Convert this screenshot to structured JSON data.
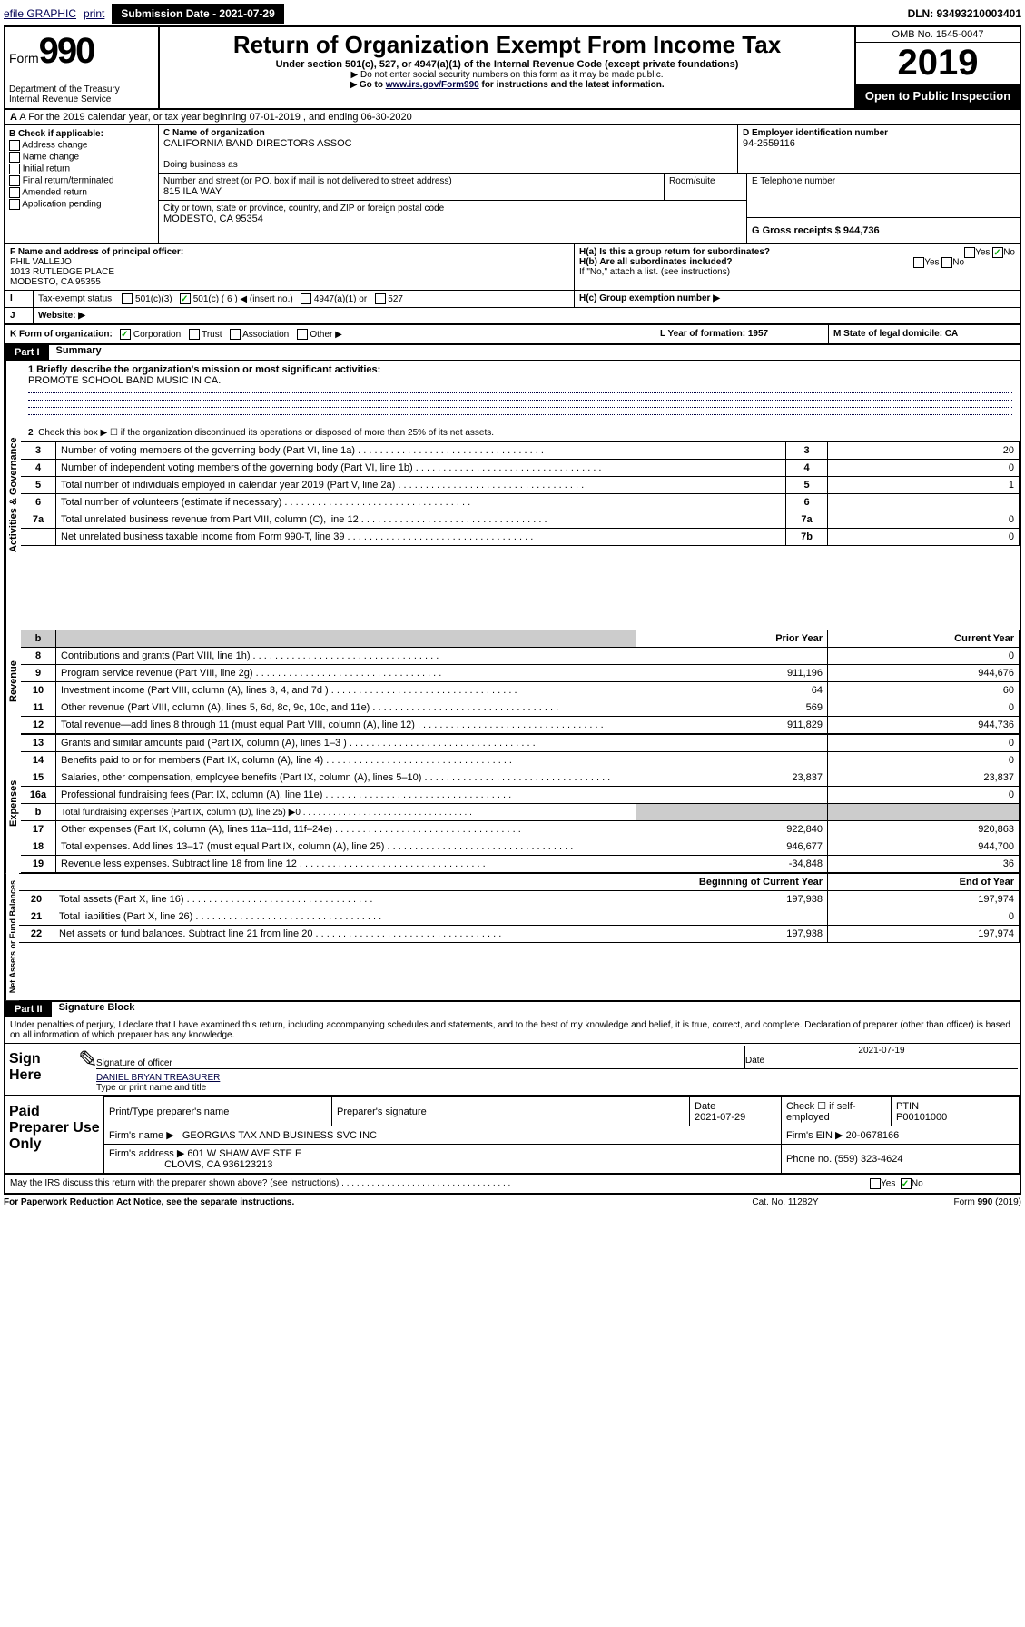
{
  "topbar": {
    "efile": "efile GRAPHIC",
    "print": "print",
    "sub_date_label": "Submission Date - 2021-07-29",
    "dln": "DLN: 93493210003401"
  },
  "header": {
    "form_prefix": "Form",
    "form_num": "990",
    "dept": "Department of the Treasury",
    "irs": "Internal Revenue Service",
    "title": "Return of Organization Exempt From Income Tax",
    "subtitle": "Under section 501(c), 527, or 4947(a)(1) of the Internal Revenue Code (except private foundations)",
    "note1": "▶ Do not enter social security numbers on this form as it may be made public.",
    "note2_pre": "▶ Go to ",
    "note2_link": "www.irs.gov/Form990",
    "note2_post": " for instructions and the latest information.",
    "omb": "OMB No. 1545-0047",
    "year": "2019",
    "open_public": "Open to Public Inspection"
  },
  "section_a": "A For the 2019 calendar year, or tax year beginning 07-01-2019   , and ending 06-30-2020",
  "section_b": {
    "label": "B Check if applicable:",
    "items": [
      "Address change",
      "Name change",
      "Initial return",
      "Final return/terminated",
      "Amended return",
      "Application pending"
    ]
  },
  "section_c": {
    "label": "C Name of organization",
    "name": "CALIFORNIA BAND DIRECTORS ASSOC",
    "dba_label": "Doing business as",
    "addr_label": "Number and street (or P.O. box if mail is not delivered to street address)",
    "room_label": "Room/suite",
    "addr": "815 ILA WAY",
    "city_label": "City or town, state or province, country, and ZIP or foreign postal code",
    "city": "MODESTO, CA  95354"
  },
  "section_d": {
    "label": "D Employer identification number",
    "value": "94-2559116"
  },
  "section_e": {
    "label": "E Telephone number"
  },
  "section_g": {
    "label": "G Gross receipts $ 944,736"
  },
  "section_f": {
    "label": "F Name and address of principal officer:",
    "name": "PHIL VALLEJO",
    "addr": "1013 RUTLEDGE PLACE",
    "city": "MODESTO, CA  95355"
  },
  "section_h": {
    "a": "H(a)  Is this a group return for subordinates?",
    "b": "H(b)  Are all subordinates included?",
    "b_note": "If \"No,\" attach a list. (see instructions)",
    "c": "H(c)  Group exemption number ▶",
    "yes": "Yes",
    "no": "No"
  },
  "section_i": {
    "label": "I",
    "text": "Tax-exempt status:",
    "opts": [
      "501(c)(3)",
      "501(c) ( 6 ) ◀ (insert no.)",
      "4947(a)(1) or",
      "527"
    ]
  },
  "section_j": {
    "label": "J",
    "text": "Website: ▶"
  },
  "section_k": {
    "label": "K Form of organization:",
    "opts": [
      "Corporation",
      "Trust",
      "Association",
      "Other ▶"
    ]
  },
  "section_l": {
    "label": "L Year of formation: 1957"
  },
  "section_m": {
    "label": "M State of legal domicile: CA"
  },
  "part1": {
    "label": "Part I",
    "title": "Summary",
    "vert_act": "Activities & Governance",
    "vert_rev": "Revenue",
    "vert_exp": "Expenses",
    "vert_net": "Net Assets or Fund Balances",
    "q1_label": "1 Briefly describe the organization's mission or most significant activities:",
    "q1_value": "PROMOTE SCHOOL BAND MUSIC IN CA.",
    "q2": "Check this box ▶ ☐  if the organization discontinued its operations or disposed of more than 25% of its net assets.",
    "lines_gov": [
      {
        "n": "3",
        "t": "Number of voting members of the governing body (Part VI, line 1a)",
        "box": "3",
        "v": "20"
      },
      {
        "n": "4",
        "t": "Number of independent voting members of the governing body (Part VI, line 1b)",
        "box": "4",
        "v": "0"
      },
      {
        "n": "5",
        "t": "Total number of individuals employed in calendar year 2019 (Part V, line 2a)",
        "box": "5",
        "v": "1"
      },
      {
        "n": "6",
        "t": "Total number of volunteers (estimate if necessary)",
        "box": "6",
        "v": ""
      },
      {
        "n": "7a",
        "t": "Total unrelated business revenue from Part VIII, column (C), line 12",
        "box": "7a",
        "v": "0"
      },
      {
        "n": "",
        "t": "Net unrelated business taxable income from Form 990-T, line 39",
        "box": "7b",
        "v": "0"
      }
    ],
    "col_prior": "Prior Year",
    "col_current": "Current Year",
    "lines_rev": [
      {
        "n": "8",
        "t": "Contributions and grants (Part VIII, line 1h)",
        "p": "",
        "c": "0"
      },
      {
        "n": "9",
        "t": "Program service revenue (Part VIII, line 2g)",
        "p": "911,196",
        "c": "944,676"
      },
      {
        "n": "10",
        "t": "Investment income (Part VIII, column (A), lines 3, 4, and 7d )",
        "p": "64",
        "c": "60"
      },
      {
        "n": "11",
        "t": "Other revenue (Part VIII, column (A), lines 5, 6d, 8c, 9c, 10c, and 11e)",
        "p": "569",
        "c": "0"
      },
      {
        "n": "12",
        "t": "Total revenue—add lines 8 through 11 (must equal Part VIII, column (A), line 12)",
        "p": "911,829",
        "c": "944,736"
      }
    ],
    "lines_exp": [
      {
        "n": "13",
        "t": "Grants and similar amounts paid (Part IX, column (A), lines 1–3 )",
        "p": "",
        "c": "0"
      },
      {
        "n": "14",
        "t": "Benefits paid to or for members (Part IX, column (A), line 4)",
        "p": "",
        "c": "0"
      },
      {
        "n": "15",
        "t": "Salaries, other compensation, employee benefits (Part IX, column (A), lines 5–10)",
        "p": "23,837",
        "c": "23,837"
      },
      {
        "n": "16a",
        "t": "Professional fundraising fees (Part IX, column (A), line 11e)",
        "p": "",
        "c": "0"
      },
      {
        "n": "b",
        "t": "Total fundraising expenses (Part IX, column (D), line 25) ▶0",
        "p": "grey",
        "c": "grey"
      },
      {
        "n": "17",
        "t": "Other expenses (Part IX, column (A), lines 11a–11d, 11f–24e)",
        "p": "922,840",
        "c": "920,863"
      },
      {
        "n": "18",
        "t": "Total expenses. Add lines 13–17 (must equal Part IX, column (A), line 25)",
        "p": "946,677",
        "c": "944,700"
      },
      {
        "n": "19",
        "t": "Revenue less expenses. Subtract line 18 from line 12",
        "p": "-34,848",
        "c": "36"
      }
    ],
    "col_begin": "Beginning of Current Year",
    "col_end": "End of Year",
    "lines_net": [
      {
        "n": "20",
        "t": "Total assets (Part X, line 16)",
        "p": "197,938",
        "c": "197,974"
      },
      {
        "n": "21",
        "t": "Total liabilities (Part X, line 26)",
        "p": "",
        "c": "0"
      },
      {
        "n": "22",
        "t": "Net assets or fund balances. Subtract line 21 from line 20",
        "p": "197,938",
        "c": "197,974"
      }
    ]
  },
  "part2": {
    "label": "Part II",
    "title": "Signature Block",
    "jurat": "Under penalties of perjury, I declare that I have examined this return, including accompanying schedules and statements, and to the best of my knowledge and belief, it is true, correct, and complete. Declaration of preparer (other than officer) is based on all information of which preparer has any knowledge.",
    "sign_here": "Sign Here",
    "sig_officer": "Signature of officer",
    "sig_date": "2021-07-19",
    "date_label": "Date",
    "officer_name": "DANIEL BRYAN TREASURER",
    "type_label": "Type or print name and title",
    "paid": "Paid Preparer Use Only",
    "pp_name_label": "Print/Type preparer's name",
    "pp_sig_label": "Preparer's signature",
    "pp_date_label": "Date",
    "pp_date": "2021-07-29",
    "pp_check": "Check ☐ if self-employed",
    "ptin_label": "PTIN",
    "ptin": "P00101000",
    "firm_name_label": "Firm's name     ▶",
    "firm_name": "GEORGIAS TAX AND BUSINESS SVC INC",
    "firm_ein_label": "Firm's EIN ▶",
    "firm_ein": "20-0678166",
    "firm_addr_label": "Firm's address ▶",
    "firm_addr": "601 W SHAW AVE STE E",
    "firm_city": "CLOVIS, CA  936123213",
    "phone_label": "Phone no. (559) 323-4624",
    "discuss": "May the IRS discuss this return with the preparer shown above? (see instructions)",
    "paperwork": "For Paperwork Reduction Act Notice, see the separate instructions.",
    "cat": "Cat. No. 11282Y",
    "form_foot": "Form 990 (2019)"
  }
}
